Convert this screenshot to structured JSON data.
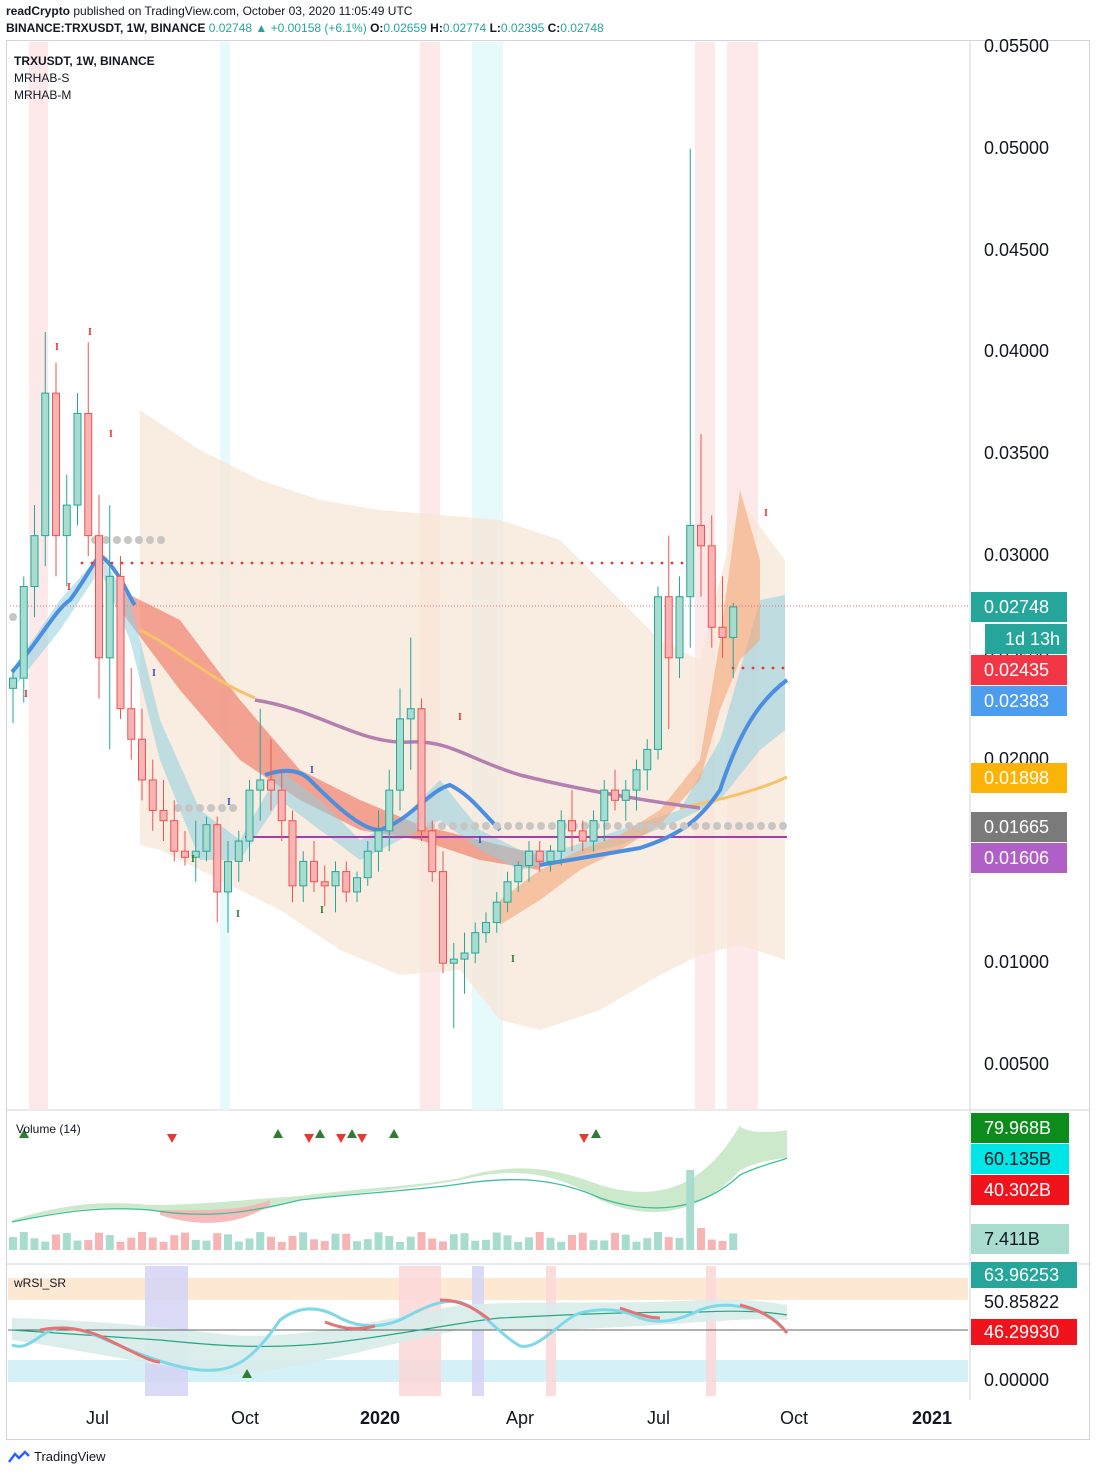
{
  "header": {
    "publisher": "readCrypto",
    "published_text": "published on TradingView.com, October 03, 2020 11:05:49 UTC",
    "symbol": "BINANCE:TRXUSDT, 1W, BINANCE",
    "last": "0.02748",
    "change": "+0.00158 (+6.1%)",
    "ohlc": {
      "o_label": "O:",
      "o": "0.02659",
      "h_label": "H:",
      "h": "0.02774",
      "l_label": "L:",
      "l": "0.02395",
      "c_label": "C:",
      "c": "0.02748"
    }
  },
  "legend": {
    "title": "TRXUSDT, 1W, BINANCE",
    "ind1": "MRHAB-S",
    "ind2": "MRHAB-M",
    "volume": "Volume (14)",
    "wrsi": "wRSI_SR"
  },
  "price_axis": [
    "0.05500",
    "0.05000",
    "0.04500",
    "0.04000",
    "0.03500",
    "0.03000",
    "0.02500",
    "0.02000",
    "0.01500",
    "0.01000",
    "0.00500"
  ],
  "price_labels": [
    {
      "text": "0.02748",
      "color": "#26a69a",
      "value": 0.02748
    },
    {
      "text": "1d 13h",
      "color": "#26a69a",
      "value": 0.02628
    },
    {
      "text": "0.02435",
      "color": "#f23645",
      "value": 0.02435
    },
    {
      "text": "0.02383",
      "color": "#4c9cf0",
      "value": 0.02383
    },
    {
      "text": "0.01898",
      "color": "#fbb308",
      "value": 0.01898
    },
    {
      "text": "0.01665",
      "color": "#7a7a7a",
      "value": 0.01665
    },
    {
      "text": "0.01606",
      "color": "#b05fc7",
      "value": 0.01606
    }
  ],
  "volume_labels": [
    {
      "text": "79.968B",
      "color": "#0c8c1c"
    },
    {
      "text": "60.135B",
      "color": "#00e5e5",
      "dark": true
    },
    {
      "text": "40.302B",
      "color": "#f0131c"
    },
    {
      "text": "7.411B",
      "color": "#a7dccf",
      "dark": true
    }
  ],
  "rsi_labels": [
    {
      "text": "63.96253",
      "color": "#26a69a"
    },
    {
      "text": "50.85822",
      "color": "#ffffff",
      "dark": true
    },
    {
      "text": "46.29930",
      "color": "#f0131c"
    },
    {
      "text": "0.00000",
      "color": "#ffffff",
      "dark": true
    }
  ],
  "time_axis": [
    "Jul",
    "Oct",
    "2020",
    "Apr",
    "Jul",
    "Oct",
    "2021"
  ],
  "branding": "TradingView",
  "colors": {
    "up": "#26a69a",
    "down": "#ef5350",
    "upfill": "#a7dccf",
    "downfill": "#f6b4b4"
  },
  "chart_data": {
    "type": "candlestick",
    "title": "TRXUSDT, 1W, BINANCE",
    "ylim": [
      0.003,
      0.0555
    ],
    "series": [
      {
        "name": "TRXUSDT",
        "candles": [
          [
            0.0235,
            0.0245,
            0.0218,
            0.024
          ],
          [
            0.024,
            0.029,
            0.0228,
            0.0285
          ],
          [
            0.0285,
            0.0325,
            0.027,
            0.031
          ],
          [
            0.031,
            0.041,
            0.0295,
            0.038
          ],
          [
            0.038,
            0.0395,
            0.029,
            0.031
          ],
          [
            0.031,
            0.034,
            0.0285,
            0.0325
          ],
          [
            0.0325,
            0.038,
            0.0315,
            0.037
          ],
          [
            0.037,
            0.0405,
            0.03,
            0.031
          ],
          [
            0.031,
            0.033,
            0.023,
            0.025
          ],
          [
            0.025,
            0.0325,
            0.0205,
            0.029
          ],
          [
            0.029,
            0.03,
            0.022,
            0.0225
          ],
          [
            0.0225,
            0.0245,
            0.02,
            0.021
          ],
          [
            0.021,
            0.0225,
            0.018,
            0.019
          ],
          [
            0.019,
            0.02,
            0.0165,
            0.0175
          ],
          [
            0.0175,
            0.019,
            0.016,
            0.017
          ],
          [
            0.017,
            0.018,
            0.015,
            0.0155
          ],
          [
            0.0155,
            0.0165,
            0.0148,
            0.0152
          ],
          [
            0.0152,
            0.017,
            0.014,
            0.0155
          ],
          [
            0.0155,
            0.0172,
            0.015,
            0.0168
          ],
          [
            0.0168,
            0.0172,
            0.012,
            0.0135
          ],
          [
            0.0135,
            0.016,
            0.0115,
            0.015
          ],
          [
            0.015,
            0.0165,
            0.014,
            0.016
          ],
          [
            0.016,
            0.019,
            0.015,
            0.0185
          ],
          [
            0.0185,
            0.0225,
            0.017,
            0.019
          ],
          [
            0.019,
            0.021,
            0.0175,
            0.0185
          ],
          [
            0.0185,
            0.0195,
            0.016,
            0.017
          ],
          [
            0.017,
            0.0175,
            0.013,
            0.0138
          ],
          [
            0.0138,
            0.0155,
            0.013,
            0.015
          ],
          [
            0.015,
            0.016,
            0.0135,
            0.014
          ],
          [
            0.014,
            0.0148,
            0.0128,
            0.0138
          ],
          [
            0.0138,
            0.015,
            0.0125,
            0.0145
          ],
          [
            0.0145,
            0.015,
            0.013,
            0.0135
          ],
          [
            0.0135,
            0.0145,
            0.013,
            0.0142
          ],
          [
            0.0142,
            0.016,
            0.0138,
            0.0155
          ],
          [
            0.0155,
            0.0175,
            0.0145,
            0.0165
          ],
          [
            0.0165,
            0.0195,
            0.0155,
            0.0185
          ],
          [
            0.0185,
            0.0235,
            0.0175,
            0.022
          ],
          [
            0.022,
            0.026,
            0.0195,
            0.0225
          ],
          [
            0.0225,
            0.023,
            0.016,
            0.0165
          ],
          [
            0.0165,
            0.017,
            0.014,
            0.0145
          ],
          [
            0.0145,
            0.0155,
            0.0095,
            0.01
          ],
          [
            0.01,
            0.011,
            0.0068,
            0.0102
          ],
          [
            0.0102,
            0.0115,
            0.0085,
            0.0105
          ],
          [
            0.0105,
            0.012,
            0.01,
            0.0115
          ],
          [
            0.0115,
            0.0125,
            0.011,
            0.012
          ],
          [
            0.012,
            0.0135,
            0.0115,
            0.013
          ],
          [
            0.013,
            0.0145,
            0.0125,
            0.014
          ],
          [
            0.014,
            0.015,
            0.0135,
            0.0148
          ],
          [
            0.0148,
            0.016,
            0.014,
            0.0155
          ],
          [
            0.0155,
            0.016,
            0.0145,
            0.015
          ],
          [
            0.015,
            0.0158,
            0.0145,
            0.0155
          ],
          [
            0.0155,
            0.0175,
            0.0148,
            0.017
          ],
          [
            0.017,
            0.0185,
            0.0155,
            0.0165
          ],
          [
            0.0165,
            0.017,
            0.0155,
            0.016
          ],
          [
            0.016,
            0.0175,
            0.0155,
            0.017
          ],
          [
            0.017,
            0.019,
            0.016,
            0.0185
          ],
          [
            0.0185,
            0.0195,
            0.0175,
            0.018
          ],
          [
            0.018,
            0.019,
            0.017,
            0.0185
          ],
          [
            0.0185,
            0.02,
            0.0175,
            0.0195
          ],
          [
            0.0195,
            0.021,
            0.0185,
            0.0205
          ],
          [
            0.0205,
            0.0285,
            0.02,
            0.028
          ],
          [
            0.028,
            0.031,
            0.0215,
            0.025
          ],
          [
            0.025,
            0.029,
            0.024,
            0.028
          ],
          [
            0.028,
            0.05,
            0.0255,
            0.0315
          ],
          [
            0.0315,
            0.036,
            0.028,
            0.0305
          ],
          [
            0.0305,
            0.032,
            0.0255,
            0.0265
          ],
          [
            0.0265,
            0.029,
            0.025,
            0.026
          ],
          [
            0.026,
            0.0277,
            0.024,
            0.0275
          ]
        ]
      }
    ]
  }
}
